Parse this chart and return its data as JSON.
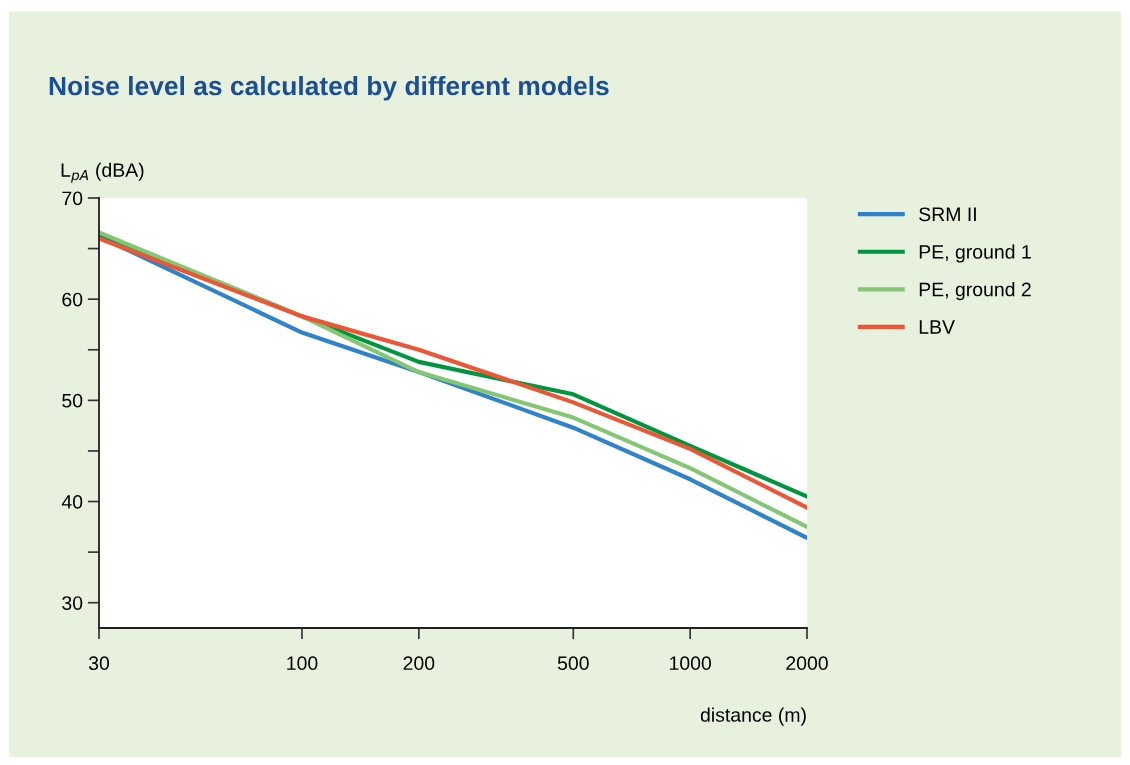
{
  "chart_data": {
    "type": "line",
    "title": "Noise level as calculated by different models",
    "xlabel": "distance (m)",
    "ylabel": "L$_{pA}$ (dBA)",
    "x": [
      30,
      100,
      200,
      500,
      1000,
      2000
    ],
    "series": [
      {
        "name": "SRM II",
        "color": "#2f82cc",
        "values": [
          66.2,
          56.7,
          52.8,
          47.3,
          42.2,
          36.4
        ]
      },
      {
        "name": "PE, ground 1",
        "color": "#00963f",
        "values": [
          66.5,
          58.3,
          53.8,
          50.6,
          45.5,
          40.5
        ]
      },
      {
        "name": "PE, ground 2",
        "color": "#84c773",
        "values": [
          66.6,
          58.3,
          52.8,
          48.3,
          43.3,
          37.5
        ]
      },
      {
        "name": "LBV",
        "color": "#ee5535",
        "values": [
          66.0,
          58.3,
          55.0,
          49.8,
          45.2,
          39.4
        ]
      }
    ],
    "log": "x",
    "xlim": [
      30,
      2000
    ],
    "xticks": [
      30,
      100,
      200,
      500,
      1000,
      2000
    ],
    "ylim": [
      27.5,
      70
    ],
    "yticks": [
      30,
      {
        "value": 35,
        "label": null
      },
      40,
      {
        "value": 45,
        "label": null
      },
      50,
      {
        "value": 55,
        "label": null
      },
      60,
      {
        "value": 65,
        "label": null
      },
      70
    ],
    "grid": false,
    "legend": "right",
    "marker": "none",
    "line_style": "solid"
  }
}
